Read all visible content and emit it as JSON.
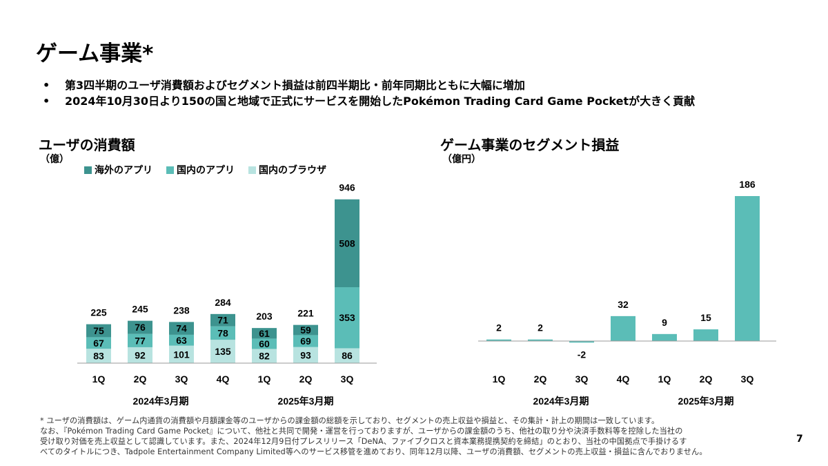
{
  "title": "ゲーム事業*",
  "bullets": [
    "第3四半期のユーザ消費額およびセグメント損益は前四半期比・前年同期比ともに大幅に増加",
    "2024年10月30日より150の国と地域で正式にサービスを開始したPokémon Trading Card Game Pocketが大きく貢献"
  ],
  "colors": {
    "overseas": "#3D938F",
    "domestic_app": "#5BBDB7",
    "domestic_browser": "#B8E3E0",
    "segment": "#5BBDB7"
  },
  "chart_data": [
    {
      "type": "bar",
      "stacked": true,
      "title": "ユーザの消費額",
      "unit": "（億）",
      "categories": [
        "1Q",
        "2Q",
        "3Q",
        "4Q",
        "1Q",
        "2Q",
        "3Q"
      ],
      "groups": [
        {
          "label": "2024年3月期",
          "from": 0,
          "to": 3
        },
        {
          "label": "2025年3月期",
          "from": 4,
          "to": 6
        }
      ],
      "series": [
        {
          "name": "国内のブラウザ",
          "color_key": "domestic_browser",
          "values": [
            83,
            92,
            101,
            135,
            82,
            93,
            86
          ]
        },
        {
          "name": "国内のアプリ",
          "color_key": "domestic_app",
          "values": [
            67,
            77,
            63,
            78,
            60,
            69,
            353
          ]
        },
        {
          "name": "海外のアプリ",
          "color_key": "overseas",
          "values": [
            75,
            76,
            74,
            71,
            61,
            59,
            508
          ]
        }
      ],
      "legend_order": [
        "海外のアプリ",
        "国内のアプリ",
        "国内のブラウザ"
      ],
      "totals": [
        225,
        245,
        238,
        284,
        203,
        221,
        946
      ],
      "ylim": [
        0,
        946
      ]
    },
    {
      "type": "bar",
      "title": "ゲーム事業のセグメント損益",
      "unit": "（億円）",
      "categories": [
        "1Q",
        "2Q",
        "3Q",
        "4Q",
        "1Q",
        "2Q",
        "3Q"
      ],
      "groups": [
        {
          "label": "2024年3月期",
          "from": 0,
          "to": 3
        },
        {
          "label": "2025年3月期",
          "from": 4,
          "to": 6
        }
      ],
      "values": [
        2,
        2,
        -2,
        32,
        9,
        15,
        186
      ],
      "ylim": [
        -2,
        186
      ]
    }
  ],
  "footnote": [
    "* ユーザの消費額は、ゲーム内通貨の消費額や月額課金等のユーザからの課金額の総額を示しており、セグメントの売上収益や損益と、その集計・計上の期間は一致しています。",
    "なお、『Pokémon Trading Card Game Pocket』について、他社と共同で開発・運営を行っておりますが、ユーザからの課金額のうち、他社の取り分や決済手数料等を控除した当社の",
    "受け取り対価を売上収益として認識しています。また、2024年12月9日付プレスリリース「DeNA、ファイブクロスと資本業務提携契約を締結」のとおり、当社の中国拠点で手掛けるす",
    "べてのタイトルにつき、Tadpole Entertainment Company Limited等へのサービス移管を進めており、同年12月以降、ユーザの消費額、セグメントの売上収益・損益に含んでおりません。"
  ],
  "page_number": "7"
}
